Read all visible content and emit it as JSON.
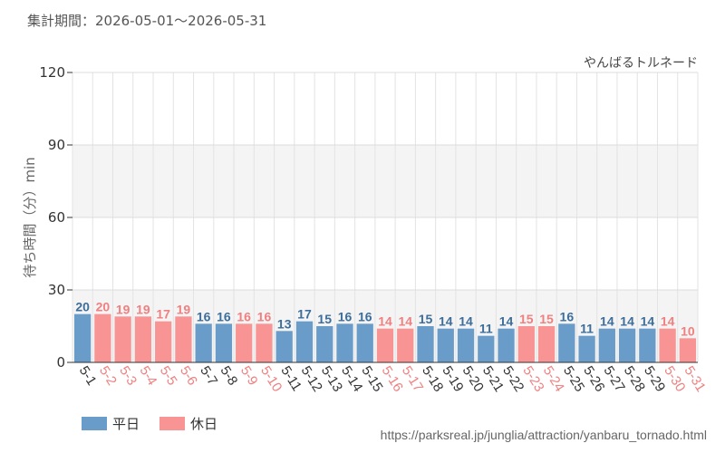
{
  "header": {
    "period_label": "集計期間：2026-05-01～2026-05-31"
  },
  "legend": {
    "weekday": "平日",
    "holiday": "休日"
  },
  "footer": {
    "source_url": "https://parksreal.jp/junglia/attraction/yanbaru_tornado.html"
  },
  "colors": {
    "weekday": "#6a9cc9",
    "holiday": "#f99494",
    "weekday_text": "#3d6e9b",
    "holiday_text": "#f08080"
  },
  "chart_data": {
    "type": "bar",
    "title": "やんばるトルネード",
    "xlabel": "",
    "ylabel": "待ち時間（分）min",
    "ylim": [
      0,
      120
    ],
    "yticks": [
      0,
      30,
      60,
      90,
      120
    ],
    "grid": true,
    "legend_position": "bottom-left",
    "categories": [
      "5-1",
      "5-2",
      "5-3",
      "5-4",
      "5-5",
      "5-6",
      "5-7",
      "5-8",
      "5-9",
      "5-10",
      "5-11",
      "5-12",
      "5-13",
      "5-14",
      "5-15",
      "5-16",
      "5-17",
      "5-18",
      "5-19",
      "5-20",
      "5-21",
      "5-22",
      "5-23",
      "5-24",
      "5-25",
      "5-26",
      "5-27",
      "5-28",
      "5-29",
      "5-30",
      "5-31"
    ],
    "values": [
      20,
      20,
      19,
      19,
      17,
      19,
      16,
      16,
      16,
      16,
      13,
      17,
      15,
      16,
      16,
      14,
      14,
      15,
      14,
      14,
      11,
      14,
      15,
      15,
      16,
      11,
      14,
      14,
      14,
      14,
      10
    ],
    "day_type": [
      "weekday",
      "holiday",
      "holiday",
      "holiday",
      "holiday",
      "holiday",
      "weekday",
      "weekday",
      "holiday",
      "holiday",
      "weekday",
      "weekday",
      "weekday",
      "weekday",
      "weekday",
      "holiday",
      "holiday",
      "weekday",
      "weekday",
      "weekday",
      "weekday",
      "weekday",
      "holiday",
      "holiday",
      "weekday",
      "weekday",
      "weekday",
      "weekday",
      "weekday",
      "holiday",
      "holiday"
    ]
  }
}
